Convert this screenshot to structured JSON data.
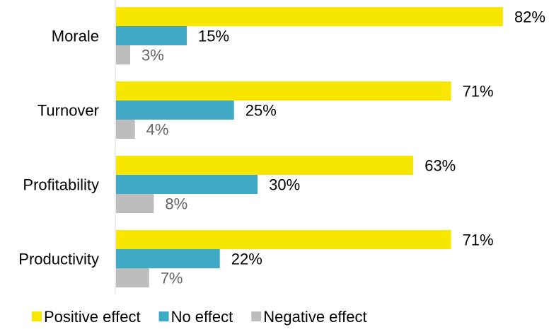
{
  "chart_data": {
    "type": "bar",
    "orientation": "horizontal",
    "categories": [
      "Morale",
      "Turnover",
      "Profitability",
      "Productivity"
    ],
    "series": [
      {
        "name": "Positive effect",
        "values": [
          82,
          71,
          63,
          71
        ],
        "color": "#f7e600",
        "label_color": "#000000"
      },
      {
        "name": "No effect",
        "values": [
          15,
          25,
          30,
          22
        ],
        "color": "#3fa9c6",
        "label_color": "#000000"
      },
      {
        "name": "Negative effect",
        "values": [
          3,
          4,
          8,
          7
        ],
        "color": "#bdbdbd",
        "label_color": "#666666"
      }
    ],
    "value_suffix": "%",
    "xlim": [
      0,
      100
    ],
    "grid": false,
    "legend_position": "bottom"
  }
}
